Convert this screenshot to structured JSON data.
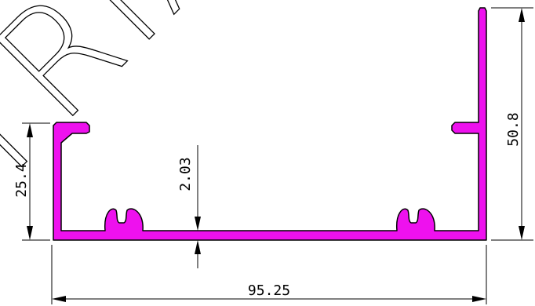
{
  "watermark": {
    "text": "TRIAL"
  },
  "profile": {
    "fill_color": "#ee11ee",
    "stroke_color": "#000000"
  },
  "dimensions": {
    "overall_width": "95.25",
    "overall_height": "50.8",
    "short_wall_height": "25.4",
    "base_thickness": "2.03"
  }
}
